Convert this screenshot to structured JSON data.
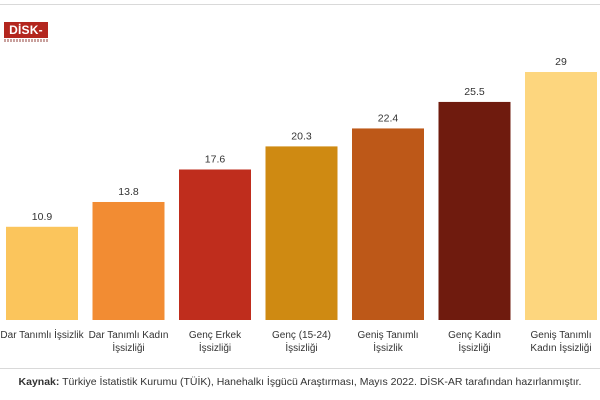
{
  "logo": {
    "text": "DİSK-AR"
  },
  "chart_data": {
    "type": "bar",
    "categories": [
      [
        "Dar Tanımlı İşsizlik"
      ],
      [
        "Dar Tanımlı Kadın",
        "İşsizliği"
      ],
      [
        "Genç Erkek",
        "İşsizliği"
      ],
      [
        "Genç (15-24)",
        "İşsizliği"
      ],
      [
        "Geniş Tanımlı",
        "İşsizlik"
      ],
      [
        "Genç Kadın",
        "İşsizliği"
      ],
      [
        "Geniş Tanımlı",
        "Kadın İşsizliği"
      ]
    ],
    "values": [
      10.9,
      13.8,
      17.6,
      20.3,
      22.4,
      25.5,
      29
    ],
    "value_labels": [
      "10.9",
      "13.8",
      "17.6",
      "20.3",
      "22.4",
      "25.5",
      "29"
    ],
    "colors": [
      "#fbc55c",
      "#f28c33",
      "#bf2d1d",
      "#cf8a12",
      "#bd5818",
      "#6f1b0e",
      "#fdd67e"
    ],
    "ylim": [
      0,
      29
    ],
    "grid": false,
    "legend": "none"
  },
  "source": {
    "label": "Kaynak:",
    "text": " Türkiye İstatistik Kurumu (TÜİK), Hanehalkı İşgücü Araştırması, Mayıs 2022. DİSK-AR tarafından hazırlanmıştır."
  }
}
